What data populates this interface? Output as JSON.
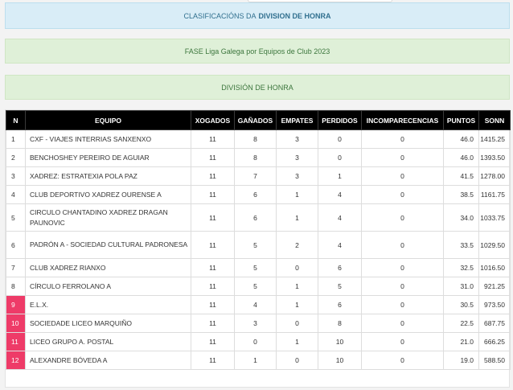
{
  "header": {
    "title_prefix": "CLASIFICACIÓNS DA",
    "title_bold": "DIVISION DE HONRA",
    "phase": "FASE Liga Galega por Equipos de Club 2023",
    "division": "DIVISIÓN DE HONRA"
  },
  "table": {
    "columns": [
      "N",
      "EQUIPO",
      "XOGADOS",
      "GAÑADOS",
      "EMPATES",
      "PERDIDOS",
      "INCOMPARECENCIAS",
      "PUNTOS",
      "SONN"
    ],
    "rows": [
      {
        "n": "1",
        "team": "CXF - VIAJES INTERRIAS SANXENXO",
        "played": "11",
        "won": "8",
        "draw": "3",
        "lost": "0",
        "noshow": "0",
        "points": "46.0",
        "sonn": "1415.25"
      },
      {
        "n": "2",
        "team": "BENCHOSHEY PEREIRO DE AGUIAR",
        "played": "11",
        "won": "8",
        "draw": "3",
        "lost": "0",
        "noshow": "0",
        "points": "46.0",
        "sonn": "1393.50"
      },
      {
        "n": "3",
        "team": "XADREZ: ESTRATEXIA POLA PAZ",
        "played": "11",
        "won": "7",
        "draw": "3",
        "lost": "1",
        "noshow": "0",
        "points": "41.5",
        "sonn": "1278.00"
      },
      {
        "n": "4",
        "team": "CLUB DEPORTIVO XADREZ OURENSE A",
        "played": "11",
        "won": "6",
        "draw": "1",
        "lost": "4",
        "noshow": "0",
        "points": "38.5",
        "sonn": "1161.75"
      },
      {
        "n": "5",
        "team": "CIRCULO CHANTADINO XADREZ DRAGAN PAUNOVIC",
        "played": "11",
        "won": "6",
        "draw": "1",
        "lost": "4",
        "noshow": "0",
        "points": "34.0",
        "sonn": "1033.75"
      },
      {
        "n": "6",
        "team": "PADRÓN A - SOCIEDAD CULTURAL PADRONESA",
        "played": "11",
        "won": "5",
        "draw": "2",
        "lost": "4",
        "noshow": "0",
        "points": "33.5",
        "sonn": "1029.50"
      },
      {
        "n": "7",
        "team": "CLUB XADREZ RIANXO",
        "played": "11",
        "won": "5",
        "draw": "0",
        "lost": "6",
        "noshow": "0",
        "points": "32.5",
        "sonn": "1016.50"
      },
      {
        "n": "8",
        "team": "CÍRCULO FERROLANO A",
        "played": "11",
        "won": "5",
        "draw": "1",
        "lost": "5",
        "noshow": "0",
        "points": "31.0",
        "sonn": "921.25"
      },
      {
        "n": "9",
        "team": "E.L.X.",
        "played": "11",
        "won": "4",
        "draw": "1",
        "lost": "6",
        "noshow": "0",
        "points": "30.5",
        "sonn": "973.50"
      },
      {
        "n": "10",
        "team": "SOCIEDADE LICEO MARQUIÑO",
        "played": "11",
        "won": "3",
        "draw": "0",
        "lost": "8",
        "noshow": "0",
        "points": "22.5",
        "sonn": "687.75"
      },
      {
        "n": "11",
        "team": "LICEO GRUPO A. POSTAL",
        "played": "11",
        "won": "0",
        "draw": "1",
        "lost": "10",
        "noshow": "0",
        "points": "21.0",
        "sonn": "666.25"
      },
      {
        "n": "12",
        "team": "ALEXANDRE BÓVEDA A",
        "played": "11",
        "won": "1",
        "draw": "0",
        "lost": "10",
        "noshow": "0",
        "points": "19.0",
        "sonn": "588.50"
      }
    ]
  },
  "colors": {
    "info_bg": "#d9edf7",
    "success_bg": "#dff0d8",
    "header_bg": "#000000",
    "relegation": "#ee3b68"
  }
}
